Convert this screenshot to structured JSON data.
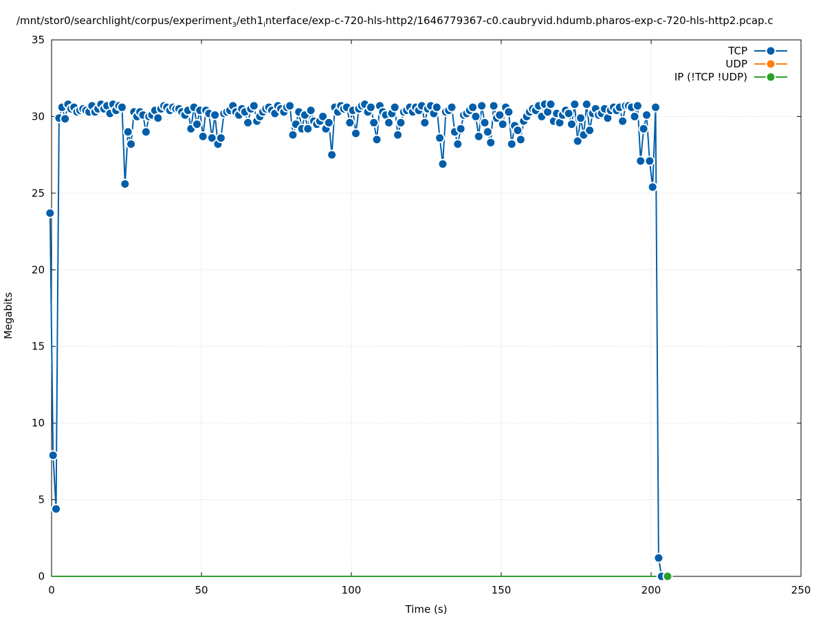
{
  "title_parts": {
    "a": "/mnt/stor0/searchlight/corpus/experiment",
    "sub1": "3",
    "b": "/eth1",
    "sub2": "i",
    "c": "nterface/exp-c-720-hls-http2/1646779367-c0.caubryvid.hdumb.pharos-exp-c-720-hls-http2.pcap.c"
  },
  "chart_data": {
    "type": "line",
    "xlabel": "Time (s)",
    "ylabel": "Megabits",
    "xlim": [
      0,
      250
    ],
    "ylim": [
      0,
      35
    ],
    "xticks": [
      0,
      50,
      100,
      150,
      200,
      250
    ],
    "yticks": [
      0,
      5,
      10,
      15,
      20,
      25,
      30,
      35
    ],
    "grid": true,
    "legend_position": "top-right",
    "series": [
      {
        "name": "TCP",
        "color": "#005eaa",
        "x": [
          -0.5,
          0.5,
          1.5,
          2.5,
          3.5,
          4.5,
          5.5,
          6.5,
          7.5,
          8.5,
          9.5,
          10.5,
          11.5,
          12.5,
          13.5,
          14.5,
          15.5,
          16.5,
          17.5,
          18.5,
          19.5,
          20.5,
          21.5,
          22.5,
          23.5,
          24.5,
          25.5,
          26.5,
          27.5,
          28.5,
          29.5,
          30.5,
          31.5,
          32.5,
          33.5,
          34.5,
          35.5,
          36.5,
          37.5,
          38.5,
          39.5,
          40.5,
          41.5,
          42.5,
          43.5,
          44.5,
          45.5,
          46.5,
          47.5,
          48.5,
          49.5,
          50.5,
          51.5,
          52.5,
          53.5,
          54.5,
          55.5,
          56.5,
          57.5,
          58.5,
          59.5,
          60.5,
          61.5,
          62.5,
          63.5,
          64.5,
          65.5,
          66.5,
          67.5,
          68.5,
          69.5,
          70.5,
          71.5,
          72.5,
          73.5,
          74.5,
          75.5,
          76.5,
          77.5,
          78.5,
          79.5,
          80.5,
          81.5,
          82.5,
          83.5,
          84.5,
          85.5,
          86.5,
          87.5,
          88.5,
          89.5,
          90.5,
          91.5,
          92.5,
          93.5,
          94.5,
          95.5,
          96.5,
          97.5,
          98.5,
          99.5,
          100.5,
          101.5,
          102.5,
          103.5,
          104.5,
          105.5,
          106.5,
          107.5,
          108.5,
          109.5,
          110.5,
          111.5,
          112.5,
          113.5,
          114.5,
          115.5,
          116.5,
          117.5,
          118.5,
          119.5,
          120.5,
          121.5,
          122.5,
          123.5,
          124.5,
          125.5,
          126.5,
          127.5,
          128.5,
          129.5,
          130.5,
          131.5,
          132.5,
          133.5,
          134.5,
          135.5,
          136.5,
          137.5,
          138.5,
          139.5,
          140.5,
          141.5,
          142.5,
          143.5,
          144.5,
          145.5,
          146.5,
          147.5,
          148.5,
          149.5,
          150.5,
          151.5,
          152.5,
          153.5,
          154.5,
          155.5,
          156.5,
          157.5,
          158.5,
          159.5,
          160.5,
          161.5,
          162.5,
          163.5,
          164.5,
          165.5,
          166.5,
          167.5,
          168.5,
          169.5,
          170.5,
          171.5,
          172.5,
          173.5,
          174.5,
          175.5,
          176.5,
          177.5,
          178.5,
          179.5,
          180.5,
          181.5,
          182.5,
          183.5,
          184.5,
          185.5,
          186.5,
          187.5,
          188.5,
          189.5,
          190.5,
          191.5,
          192.5,
          193.5,
          194.5,
          195.5,
          196.5,
          197.5,
          198.5,
          199.5,
          200.5,
          201.5,
          202.5,
          203.5
        ],
        "y": [
          23.7,
          7.9,
          4.4,
          29.9,
          30.6,
          29.85,
          30.8,
          30.5,
          30.6,
          30.3,
          30.4,
          30.5,
          30.4,
          30.3,
          30.7,
          30.3,
          30.5,
          30.8,
          30.5,
          30.7,
          30.2,
          30.8,
          30.4,
          30.7,
          30.6,
          25.6,
          29.0,
          28.2,
          30.3,
          30.0,
          30.3,
          30.1,
          29.0,
          30.0,
          30.1,
          30.4,
          29.9,
          30.5,
          30.7,
          30.6,
          30.4,
          30.6,
          30.5,
          30.5,
          30.3,
          30.1,
          30.4,
          29.2,
          30.6,
          29.5,
          30.4,
          28.7,
          30.4,
          30.2,
          28.6,
          30.1,
          28.2,
          28.6,
          30.2,
          30.3,
          30.4,
          30.7,
          30.3,
          30.1,
          30.5,
          30.3,
          29.6,
          30.5,
          30.7,
          29.7,
          30.0,
          30.3,
          30.5,
          30.6,
          30.4,
          30.2,
          30.7,
          30.5,
          30.3,
          30.6,
          30.7,
          28.8,
          29.5,
          30.3,
          29.2,
          30.1,
          29.2,
          30.4,
          29.7,
          29.5,
          29.7,
          30.0,
          29.2,
          29.6,
          27.5,
          30.6,
          30.3,
          30.7,
          30.5,
          30.6,
          29.6,
          30.4,
          28.9,
          30.5,
          30.7,
          30.8,
          30.3,
          30.6,
          29.6,
          28.5,
          30.7,
          30.3,
          30.1,
          29.6,
          30.2,
          30.6,
          28.8,
          29.6,
          30.3,
          30.4,
          30.6,
          30.3,
          30.6,
          30.4,
          30.7,
          29.6,
          30.5,
          30.7,
          30.2,
          30.6,
          28.6,
          26.9,
          30.3,
          30.4,
          30.6,
          29.0,
          28.2,
          29.2,
          30.1,
          30.2,
          30.4,
          30.6,
          30.0,
          28.7,
          30.7,
          29.6,
          29.0,
          28.3,
          30.7,
          29.9,
          30.1,
          29.5,
          30.6,
          30.3,
          28.2,
          29.4,
          29.1,
          28.5,
          29.7,
          30.0,
          30.3,
          30.5,
          30.4,
          30.7,
          30.0,
          30.8,
          30.3,
          30.8,
          29.7,
          30.2,
          29.6,
          30.1,
          30.4,
          30.2,
          29.5,
          30.8,
          28.4,
          29.9,
          28.8,
          30.8,
          29.1,
          30.2,
          30.5,
          30.1,
          30.2,
          30.5,
          29.9,
          30.4,
          30.6,
          30.4,
          30.6,
          29.7,
          30.7,
          30.7,
          30.6,
          30.0,
          30.7,
          27.1,
          29.2,
          30.1,
          27.1,
          25.4,
          30.6,
          1.2,
          0.0
        ]
      },
      {
        "name": "UDP",
        "color": "#ff7f0e",
        "x": [],
        "y": []
      },
      {
        "name": "IP (!TCP  !UDP)",
        "color": "#2ca02c",
        "x": [
          0.5,
          1.5,
          2.5,
          3.5,
          4.5,
          5.5,
          6.5,
          7.5,
          8.5,
          9.5,
          10.5,
          11.5,
          12.5,
          13.5,
          14.5,
          15.5,
          16.5,
          17.5,
          18.5,
          19.5,
          20.5,
          21.5,
          22.5,
          23.5,
          24.5,
          25.5,
          26.5,
          27.5,
          28.5,
          29.5,
          30.5,
          31.5,
          32.5,
          33.5,
          34.5,
          35.5,
          36.5,
          37.5,
          38.5,
          39.5,
          40.5,
          41.5,
          42.5,
          43.5,
          44.5,
          45.5,
          46.5,
          47.5,
          48.5,
          49.5,
          50.5,
          51.5,
          52.5,
          53.5,
          54.5,
          55.5,
          56.5,
          57.5,
          58.5,
          59.5,
          60.5,
          61.5,
          62.5,
          63.5,
          64.5,
          65.5,
          66.5,
          67.5,
          68.5,
          69.5,
          70.5,
          71.5,
          72.5,
          73.5,
          74.5,
          75.5,
          76.5,
          77.5,
          78.5,
          79.5,
          80.5,
          81.5,
          82.5,
          83.5,
          84.5,
          85.5,
          86.5,
          87.5,
          88.5,
          89.5,
          90.5,
          91.5,
          92.5,
          93.5,
          94.5,
          95.5,
          96.5,
          97.5,
          98.5,
          99.5,
          100.5,
          101.5,
          102.5,
          103.5,
          104.5,
          105.5,
          106.5,
          107.5,
          108.5,
          109.5,
          110.5,
          111.5,
          112.5,
          113.5,
          114.5,
          115.5,
          116.5,
          117.5,
          118.5,
          119.5,
          120.5,
          121.5,
          122.5,
          123.5,
          124.5,
          125.5,
          126.5,
          127.5,
          128.5,
          129.5,
          130.5,
          131.5,
          132.5,
          133.5,
          134.5,
          135.5,
          136.5,
          137.5,
          138.5,
          139.5,
          140.5,
          141.5,
          142.5,
          143.5,
          144.5,
          145.5,
          146.5,
          147.5,
          148.5,
          149.5,
          150.5,
          151.5,
          152.5,
          153.5,
          154.5,
          155.5,
          156.5,
          157.5,
          158.5,
          159.5,
          160.5,
          161.5,
          162.5,
          163.5,
          164.5,
          165.5,
          166.5,
          167.5,
          168.5,
          169.5,
          170.5,
          171.5,
          172.5,
          173.5,
          174.5,
          175.5,
          176.5,
          177.5,
          178.5,
          179.5,
          180.5,
          181.5,
          182.5,
          183.5,
          184.5,
          185.5,
          186.5,
          187.5,
          188.5,
          189.5,
          190.5,
          191.5,
          192.5,
          193.5,
          194.5,
          195.5,
          196.5,
          197.5,
          198.5,
          199.5,
          200.5,
          201.5,
          202.5,
          203.5,
          205.5
        ],
        "y": [
          0,
          0,
          0,
          0,
          0,
          0,
          0,
          0,
          0,
          0,
          0,
          0,
          0,
          0,
          0,
          0,
          0,
          0,
          0,
          0,
          0,
          0,
          0,
          0,
          0,
          0,
          0,
          0,
          0,
          0,
          0,
          0,
          0,
          0,
          0,
          0,
          0,
          0,
          0,
          0,
          0,
          0,
          0,
          0,
          0,
          0,
          0,
          0,
          0,
          0,
          0,
          0,
          0,
          0,
          0,
          0,
          0,
          0,
          0,
          0,
          0,
          0,
          0,
          0,
          0,
          0,
          0,
          0,
          0,
          0,
          0,
          0,
          0,
          0,
          0,
          0,
          0,
          0,
          0,
          0,
          0,
          0,
          0,
          0,
          0,
          0,
          0,
          0,
          0,
          0,
          0,
          0,
          0,
          0,
          0,
          0,
          0,
          0,
          0,
          0,
          0,
          0,
          0,
          0,
          0,
          0,
          0,
          0,
          0,
          0,
          0,
          0,
          0,
          0,
          0,
          0,
          0,
          0,
          0,
          0,
          0,
          0,
          0,
          0,
          0,
          0,
          0,
          0,
          0,
          0,
          0,
          0,
          0,
          0,
          0,
          0,
          0,
          0,
          0,
          0,
          0,
          0,
          0,
          0,
          0,
          0,
          0,
          0,
          0,
          0,
          0,
          0,
          0,
          0,
          0,
          0,
          0,
          0,
          0,
          0,
          0,
          0,
          0,
          0,
          0,
          0,
          0,
          0,
          0,
          0,
          0,
          0,
          0,
          0,
          0,
          0,
          0,
          0,
          0,
          0,
          0,
          0,
          0,
          0,
          0,
          0,
          0,
          0,
          0,
          0,
          0,
          0,
          0,
          0,
          0,
          0,
          0,
          0,
          0,
          0,
          0,
          0,
          0,
          0,
          0.0
        ]
      }
    ]
  }
}
